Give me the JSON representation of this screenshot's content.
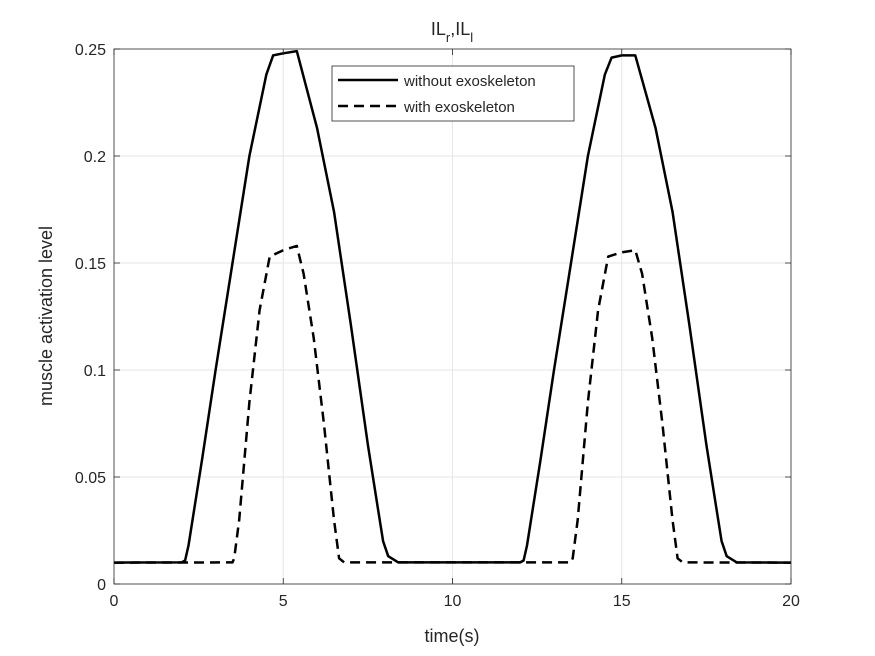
{
  "chart_data": {
    "type": "line",
    "title": "IL",
    "title_subscripts": [
      "r",
      "l"
    ],
    "xlabel": "time(s)",
    "ylabel": "muscle activation level",
    "xlim": [
      0,
      20
    ],
    "ylim": [
      0,
      0.25
    ],
    "xticks": [
      0,
      5,
      10,
      15,
      20
    ],
    "xtick_labels": [
      "0",
      "5",
      "10",
      "15",
      "20"
    ],
    "yticks": [
      0,
      0.05,
      0.1,
      0.15,
      0.2,
      0.25
    ],
    "ytick_labels": [
      "0",
      "0.05",
      "0.1",
      "0.15",
      "0.2",
      "0.25"
    ],
    "grid": true,
    "legend_position": "top-right",
    "series": [
      {
        "name": "without exoskeleton",
        "style": "solid",
        "color": "#000000",
        "x": [
          0,
          2.0,
          2.1,
          2.2,
          2.6,
          3.0,
          3.5,
          4.0,
          4.5,
          4.7,
          5.0,
          5.4,
          6.0,
          6.5,
          7.0,
          7.5,
          7.8,
          7.95,
          8.1,
          8.4,
          12.0,
          12.1,
          12.2,
          12.6,
          13.0,
          13.5,
          14.0,
          14.5,
          14.7,
          15.0,
          15.4,
          16.0,
          16.5,
          17.0,
          17.5,
          17.8,
          17.95,
          18.1,
          18.4,
          20
        ],
        "y": [
          0.01,
          0.0101,
          0.011,
          0.018,
          0.058,
          0.1,
          0.15,
          0.2,
          0.238,
          0.247,
          0.248,
          0.249,
          0.213,
          0.174,
          0.121,
          0.065,
          0.035,
          0.02,
          0.013,
          0.0101,
          0.0101,
          0.011,
          0.018,
          0.058,
          0.1,
          0.15,
          0.2,
          0.238,
          0.246,
          0.247,
          0.247,
          0.213,
          0.174,
          0.121,
          0.065,
          0.035,
          0.02,
          0.013,
          0.0101,
          0.01
        ]
      },
      {
        "name": "with exoskeleton",
        "style": "dashed",
        "color": "#000000",
        "x": [
          0,
          3.5,
          3.55,
          3.7,
          4.0,
          4.3,
          4.6,
          5.0,
          5.4,
          5.6,
          5.9,
          6.2,
          6.5,
          6.65,
          6.8,
          13.5,
          13.55,
          13.7,
          14.0,
          14.3,
          14.6,
          15.0,
          15.4,
          15.6,
          15.9,
          16.2,
          16.5,
          16.65,
          16.8,
          20
        ],
        "y": [
          0.01,
          0.0101,
          0.012,
          0.03,
          0.085,
          0.128,
          0.153,
          0.156,
          0.158,
          0.145,
          0.115,
          0.075,
          0.03,
          0.012,
          0.0101,
          0.0101,
          0.012,
          0.03,
          0.085,
          0.128,
          0.153,
          0.155,
          0.156,
          0.145,
          0.115,
          0.075,
          0.03,
          0.012,
          0.0101,
          0.01
        ]
      }
    ]
  }
}
